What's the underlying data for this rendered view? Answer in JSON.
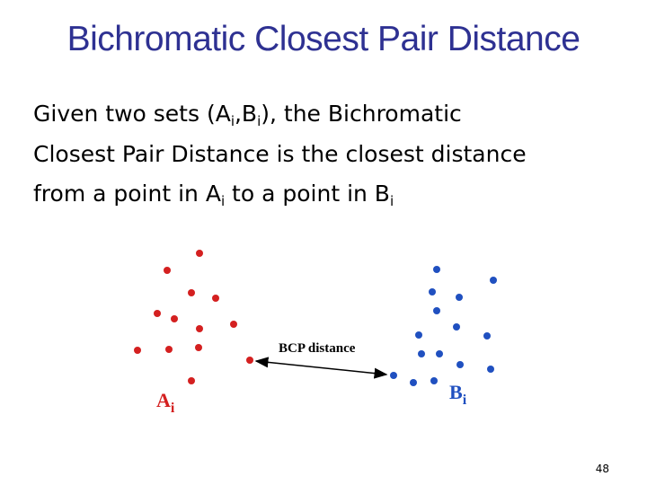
{
  "title": "Bichromatic Closest Pair Distance",
  "body": {
    "lines": [
      [
        "Given two sets (A",
        "i",
        ",B",
        "i",
        "), the Bichromatic"
      ],
      [
        "Closest Pair Distance is the closest distance"
      ],
      [
        "from a point in A",
        "i",
        " to a point in B",
        "i"
      ]
    ]
  },
  "diagram": {
    "arrow_label": "BCP distance",
    "set_a": {
      "letter": "A",
      "sub": "i"
    },
    "set_b": {
      "letter": "B",
      "sub": "i"
    }
  },
  "page_number": "48"
}
